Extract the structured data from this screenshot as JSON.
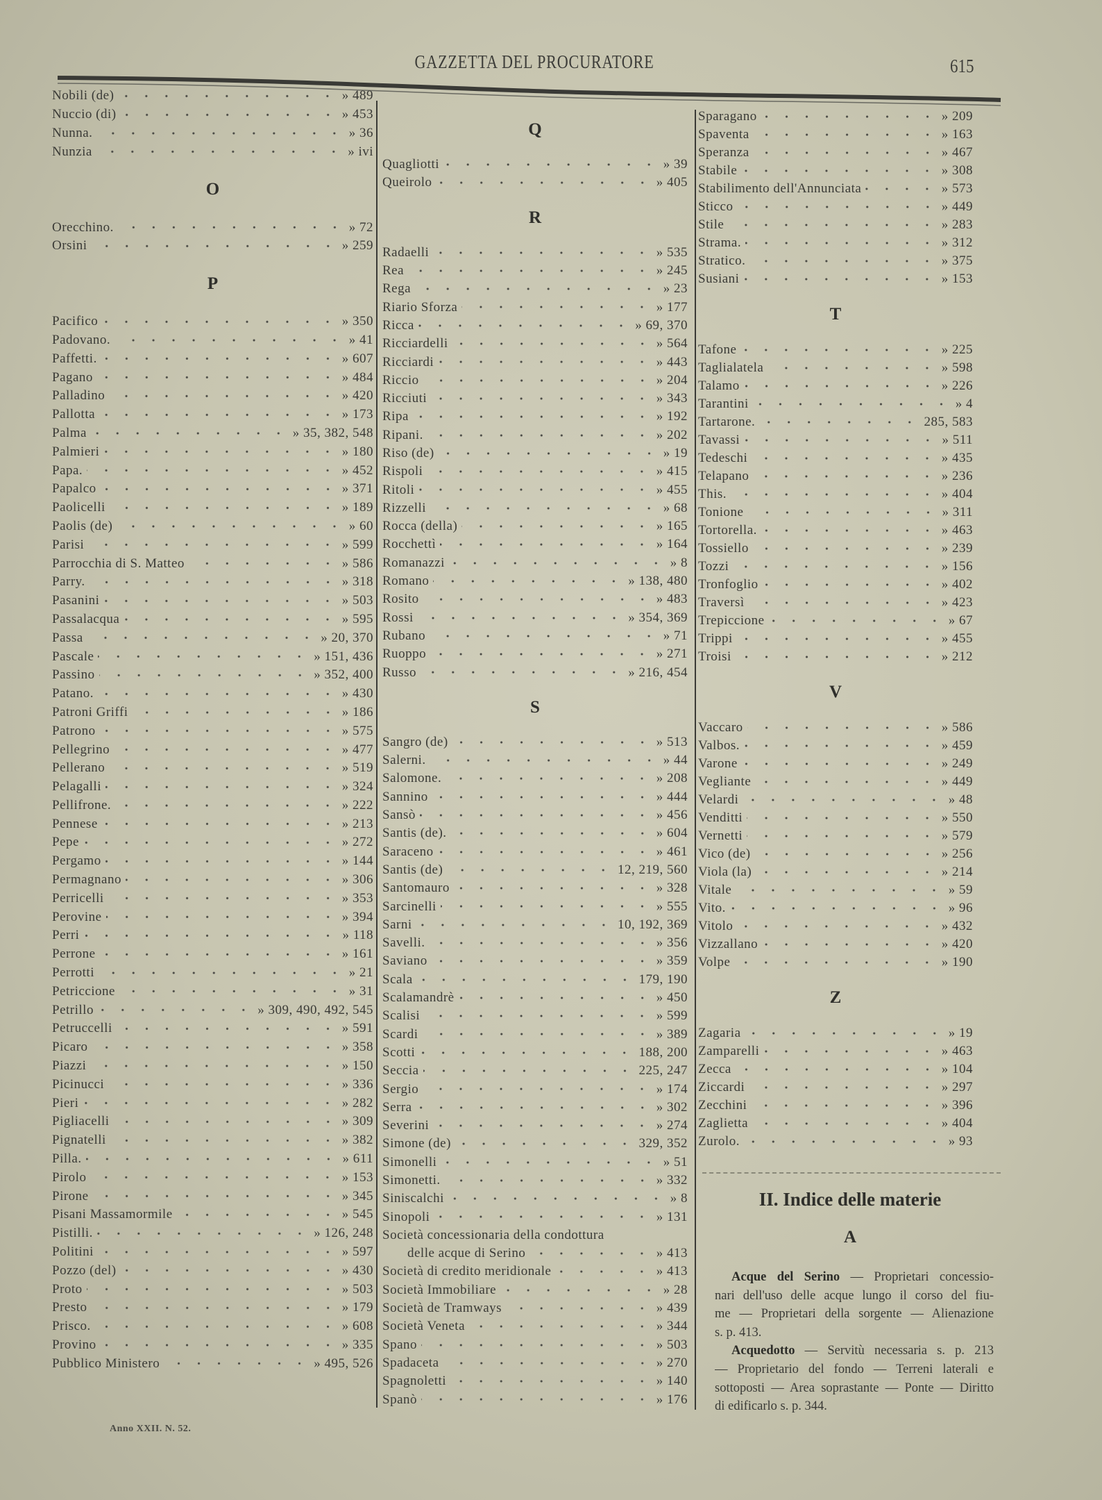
{
  "header": {
    "title": "GAZZETTA DEL PROCURATORE",
    "page_number": "615"
  },
  "columns": {
    "left": [
      {
        "letter": null,
        "entries": [
          {
            "name": "Nobili (de)",
            "pages": "» 489"
          },
          {
            "name": "Nuccio (di)",
            "pages": "» 453"
          },
          {
            "name": "Nunna.",
            "pages": "» 36"
          },
          {
            "name": "Nunzia",
            "pages": "» ivi"
          }
        ]
      },
      {
        "letter": "O",
        "entries": [
          {
            "name": "Orecchino.",
            "pages": "» 72"
          },
          {
            "name": "Orsini",
            "pages": "» 259"
          }
        ]
      },
      {
        "letter": "P",
        "entries": [
          {
            "name": "Pacifico",
            "pages": "» 350"
          },
          {
            "name": "Padovano.",
            "pages": "» 41"
          },
          {
            "name": "Paffetti.",
            "pages": "» 607"
          },
          {
            "name": "Pagano",
            "pages": "» 484"
          },
          {
            "name": "Palladino",
            "pages": "» 420"
          },
          {
            "name": "Pallotta",
            "pages": "» 173"
          },
          {
            "name": "Palma",
            "pages": "» 35, 382, 548"
          },
          {
            "name": "Palmieri",
            "pages": "» 180"
          },
          {
            "name": "Papa.",
            "pages": "» 452"
          },
          {
            "name": "Papalco",
            "pages": "» 371"
          },
          {
            "name": "Paolicelli",
            "pages": "» 189"
          },
          {
            "name": "Paolis (de)",
            "pages": "» 60"
          },
          {
            "name": "Parisi",
            "pages": "» 599"
          },
          {
            "name": "Parrocchia di S. Matteo",
            "pages": "» 586"
          },
          {
            "name": "Parry.",
            "pages": "» 318"
          },
          {
            "name": "Pasanini",
            "pages": "» 503"
          },
          {
            "name": "Passalacqua",
            "pages": "» 595"
          },
          {
            "name": "Passa",
            "pages": "» 20, 370"
          },
          {
            "name": "Pascale",
            "pages": "» 151, 436"
          },
          {
            "name": "Passino",
            "pages": "» 352, 400"
          },
          {
            "name": "Patano.",
            "pages": "» 430"
          },
          {
            "name": "Patroni Griffi",
            "pages": "» 186"
          },
          {
            "name": "Patrono",
            "pages": "» 575"
          },
          {
            "name": "Pellegrino",
            "pages": "» 477"
          },
          {
            "name": "Pellerano",
            "pages": "» 519"
          },
          {
            "name": "Pelagalli",
            "pages": "» 324"
          },
          {
            "name": "Pellifrone.",
            "pages": "» 222"
          },
          {
            "name": "Pennese",
            "pages": "» 213"
          },
          {
            "name": "Pepe",
            "pages": "» 272"
          },
          {
            "name": "Pergamo",
            "pages": "» 144"
          },
          {
            "name": "Permagnano",
            "pages": "» 306"
          },
          {
            "name": "Perricelli",
            "pages": "» 353"
          },
          {
            "name": "Perovine",
            "pages": "» 394"
          },
          {
            "name": "Perri",
            "pages": "» 118"
          },
          {
            "name": "Perrone",
            "pages": "» 161"
          },
          {
            "name": "Perrotti",
            "pages": "» 21"
          },
          {
            "name": "Petriccione",
            "pages": "» 31"
          },
          {
            "name": "Petrillo",
            "pages": "» 309, 490, 492, 545"
          },
          {
            "name": "Petruccelli",
            "pages": "» 591"
          },
          {
            "name": "Picaro",
            "pages": "» 358"
          },
          {
            "name": "Piazzi",
            "pages": "» 150"
          },
          {
            "name": "Picinucci",
            "pages": "» 336"
          },
          {
            "name": "Pieri",
            "pages": "» 282"
          },
          {
            "name": "Pigliacelli",
            "pages": "» 309"
          },
          {
            "name": "Pignatelli",
            "pages": "» 382"
          },
          {
            "name": "Pilla.",
            "pages": "» 611"
          },
          {
            "name": "Pirolo",
            "pages": "» 153"
          },
          {
            "name": "Pirone",
            "pages": "» 345"
          },
          {
            "name": "Pisani Massamormile",
            "pages": "» 545"
          },
          {
            "name": "Pistilli.",
            "pages": "» 126, 248"
          },
          {
            "name": "Politini",
            "pages": "» 597"
          },
          {
            "name": "Pozzo (del)",
            "pages": "» 430"
          },
          {
            "name": "Proto",
            "pages": "» 503"
          },
          {
            "name": "Presto",
            "pages": "» 179"
          },
          {
            "name": "Prisco.",
            "pages": "» 608"
          },
          {
            "name": "Provino",
            "pages": "» 335"
          },
          {
            "name": "Pubblico Ministero",
            "pages": "» 495, 526"
          }
        ]
      }
    ],
    "middle": [
      {
        "letter": "Q",
        "entries": [
          {
            "name": "Quagliotti",
            "pages": "» 39"
          },
          {
            "name": "Queirolo",
            "pages": "» 405"
          }
        ]
      },
      {
        "letter": "R",
        "entries": [
          {
            "name": "Radaelli",
            "pages": "» 535"
          },
          {
            "name": "Rea",
            "pages": "» 245"
          },
          {
            "name": "Rega",
            "pages": "» 23"
          },
          {
            "name": "Riario Sforza",
            "pages": "» 177"
          },
          {
            "name": "Ricca",
            "pages": "» 69, 370"
          },
          {
            "name": "Ricciardelli",
            "pages": "» 564"
          },
          {
            "name": "Ricciardi",
            "pages": "» 443"
          },
          {
            "name": "Riccio",
            "pages": "» 204"
          },
          {
            "name": "Ricciuti",
            "pages": "» 343"
          },
          {
            "name": "Ripa",
            "pages": "» 192"
          },
          {
            "name": "Ripani.",
            "pages": "» 202"
          },
          {
            "name": "Riso (de)",
            "pages": "» 19"
          },
          {
            "name": "Rispoli",
            "pages": "» 415"
          },
          {
            "name": "Ritoli",
            "pages": "» 455"
          },
          {
            "name": "Rizzelli",
            "pages": "» 68"
          },
          {
            "name": "Rocca (della)",
            "pages": "» 165"
          },
          {
            "name": "Rocchettì",
            "pages": "» 164"
          },
          {
            "name": "Romanazzi",
            "pages": "» 8"
          },
          {
            "name": "Romano",
            "pages": "» 138, 480"
          },
          {
            "name": "Rosito",
            "pages": "» 483"
          },
          {
            "name": "Rossi",
            "pages": "» 354, 369"
          },
          {
            "name": "Rubano",
            "pages": "» 71"
          },
          {
            "name": "Ruoppo",
            "pages": "» 271"
          },
          {
            "name": "Russo",
            "pages": "» 216, 454"
          }
        ]
      },
      {
        "letter": "S",
        "entries": [
          {
            "name": "Sangro (de)",
            "pages": "» 513"
          },
          {
            "name": "Salerni.",
            "pages": "» 44"
          },
          {
            "name": "Salomone.",
            "pages": "» 208"
          },
          {
            "name": "Sannino",
            "pages": "» 444"
          },
          {
            "name": "Sansò",
            "pages": "» 456"
          },
          {
            "name": "Santis (de).",
            "pages": "» 604"
          },
          {
            "name": "Saraceno",
            "pages": "» 461"
          },
          {
            "name": "Santis (de)",
            "pages": "12, 219, 560"
          },
          {
            "name": "Santomauro",
            "pages": "» 328"
          },
          {
            "name": "Sarcinelli",
            "pages": "» 555"
          },
          {
            "name": "Sarni",
            "pages": "10, 192, 369"
          },
          {
            "name": "Savelli.",
            "pages": "» 356"
          },
          {
            "name": "Saviano",
            "pages": "» 359"
          },
          {
            "name": "Scala",
            "pages": "179, 190"
          },
          {
            "name": "Scalamandrè",
            "pages": "» 450"
          },
          {
            "name": "Scalisi",
            "pages": "» 599"
          },
          {
            "name": "Scardi",
            "pages": "» 389"
          },
          {
            "name": "Scotti",
            "pages": "188, 200"
          },
          {
            "name": "Seccia",
            "pages": "225, 247"
          },
          {
            "name": "Sergio",
            "pages": "» 174"
          },
          {
            "name": "Serra",
            "pages": "» 302"
          },
          {
            "name": "Severini",
            "pages": "» 274"
          },
          {
            "name": "Simone (de)",
            "pages": "329, 352"
          },
          {
            "name": "Simonelli",
            "pages": "» 51"
          },
          {
            "name": "Simonetti.",
            "pages": "» 332"
          },
          {
            "name": "Siniscalchi",
            "pages": "» 8"
          },
          {
            "name": "Sinopoli",
            "pages": "» 131"
          },
          {
            "name": "Società concessionaria della condottura",
            "cont": "delle acque di Serino",
            "pages": "» 413"
          },
          {
            "name": "Società di credito meridionale",
            "pages": "» 413"
          },
          {
            "name": "Società Immobiliare",
            "pages": "» 28"
          },
          {
            "name": "Società de Tramways",
            "pages": "» 439"
          },
          {
            "name": "Società Veneta",
            "pages": "» 344"
          },
          {
            "name": "Spano",
            "pages": "» 503"
          },
          {
            "name": "Spadaceta",
            "pages": "» 270"
          },
          {
            "name": "Spagnoletti",
            "pages": "» 140"
          },
          {
            "name": "Spanò",
            "pages": "» 176"
          }
        ]
      }
    ],
    "right": [
      {
        "letter": null,
        "entries": [
          {
            "name": "Sparagano",
            "pages": "» 209"
          },
          {
            "name": "Spaventa",
            "pages": "» 163"
          },
          {
            "name": "Speranza",
            "pages": "» 467"
          },
          {
            "name": "Stabile",
            "pages": "» 308"
          },
          {
            "name": "Stabilimento dell'Annunciata",
            "pages": "» 573"
          },
          {
            "name": "Sticco",
            "pages": "» 449"
          },
          {
            "name": "Stile",
            "pages": "» 283"
          },
          {
            "name": "Strama.",
            "pages": "» 312"
          },
          {
            "name": "Stratico.",
            "pages": "» 375"
          },
          {
            "name": "Susiani",
            "pages": "» 153"
          }
        ]
      },
      {
        "letter": "T",
        "entries": [
          {
            "name": "Tafone",
            "pages": "» 225"
          },
          {
            "name": "Taglialatela",
            "pages": "» 598"
          },
          {
            "name": "Talamo",
            "pages": "» 226"
          },
          {
            "name": "Tarantini",
            "pages": "» 4"
          },
          {
            "name": "Tartarone.",
            "pages": "285, 583"
          },
          {
            "name": "Tavassi",
            "pages": "» 511"
          },
          {
            "name": "Tedeschi",
            "pages": "» 435"
          },
          {
            "name": "Telapano",
            "pages": "» 236"
          },
          {
            "name": "This.",
            "pages": "» 404"
          },
          {
            "name": "Tonione",
            "pages": "» 311"
          },
          {
            "name": "Tortorella.",
            "pages": "» 463"
          },
          {
            "name": "Tossiello",
            "pages": "» 239"
          },
          {
            "name": "Tozzi",
            "pages": "» 156"
          },
          {
            "name": "Tronfoglio",
            "pages": "» 402"
          },
          {
            "name": "Traversì",
            "pages": "» 423"
          },
          {
            "name": "Trepiccione",
            "pages": "» 67"
          },
          {
            "name": "Trippi",
            "pages": "» 455"
          },
          {
            "name": "Troisi",
            "pages": "» 212"
          }
        ]
      },
      {
        "letter": "V",
        "entries": [
          {
            "name": "Vaccaro",
            "pages": "» 586"
          },
          {
            "name": "Valbos.",
            "pages": "» 459"
          },
          {
            "name": "Varone",
            "pages": "» 249"
          },
          {
            "name": "Vegliante",
            "pages": "» 449"
          },
          {
            "name": "Velardi",
            "pages": "» 48"
          },
          {
            "name": "Venditti",
            "pages": "» 550"
          },
          {
            "name": "Vernetti",
            "pages": "» 579"
          },
          {
            "name": "Vico (de)",
            "pages": "» 256"
          },
          {
            "name": "Viola (la)",
            "pages": "» 214"
          },
          {
            "name": "Vitale",
            "pages": "» 59"
          },
          {
            "name": "Vito.",
            "pages": "» 96"
          },
          {
            "name": "Vitolo",
            "pages": "» 432"
          },
          {
            "name": "Vizzallano",
            "pages": "» 420"
          },
          {
            "name": "Volpe",
            "pages": "» 190"
          }
        ]
      },
      {
        "letter": "Z",
        "entries": [
          {
            "name": "Zagaria",
            "pages": "» 19"
          },
          {
            "name": "Zamparelli",
            "pages": "» 463"
          },
          {
            "name": "Zecca",
            "pages": "» 104"
          },
          {
            "name": "Ziccardi",
            "pages": "» 297"
          },
          {
            "name": "Zecchini",
            "pages": "» 396"
          },
          {
            "name": "Zaglietta",
            "pages": "» 404"
          },
          {
            "name": "Zurolo.",
            "pages": "» 93"
          }
        ]
      }
    ]
  },
  "materie": {
    "title": "II. Indice delle materie",
    "letter": "A",
    "entries": [
      {
        "term": "Acque del Serino",
        "lines": [
          " — Proprietari concessio-",
          "nari dell'uso delle acque lungo il corso del fiu-",
          "me — Proprietari della sorgente — Alienazione",
          "s. p. 413."
        ]
      },
      {
        "term": "Acquedotto",
        "lines": [
          " — Servitù necessaria s. p. 213",
          "— Proprietario del fondo — Terreni laterali e",
          "sottoposti — Area soprastante — Ponte — Diritto",
          "di edificarlo s. p. 344."
        ]
      }
    ]
  },
  "footer": {
    "issue": "Anno XXII. N. 52."
  }
}
